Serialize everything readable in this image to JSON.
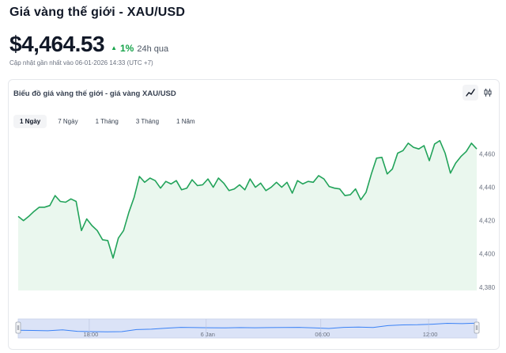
{
  "header": {
    "title": "Giá vàng thế giới - XAU/USD",
    "price": "$4,464.53",
    "change": "1%",
    "change_period": "24h qua",
    "updated": "Cập nhật gần nhất vào 06-01-2026 14:33 (UTC +7)"
  },
  "card": {
    "title": "Biểu đồ giá vàng thế giới - giá vàng XAU/USD",
    "modes": [
      {
        "icon": "line-chart-icon",
        "active": true
      },
      {
        "icon": "candlestick-icon",
        "active": false
      }
    ],
    "tabs": [
      {
        "label": "1 Ngày",
        "active": true
      },
      {
        "label": "7 Ngày",
        "active": false
      },
      {
        "label": "1 Tháng",
        "active": false
      },
      {
        "label": "3 Tháng",
        "active": false
      },
      {
        "label": "1 Năm",
        "active": false
      }
    ]
  },
  "colors": {
    "accent": "#16a34a",
    "line": "#22a35a",
    "area": "#eaf7ee",
    "navigator_fill": "#dbe3f7",
    "navigator_line": "#3b82f6"
  },
  "chart_data": {
    "type": "area",
    "y_ticks": [
      "4,460",
      "4,440",
      "4,420",
      "4,400",
      "4,380"
    ],
    "y_tick_values": [
      4460,
      4440,
      4420,
      4400,
      4380
    ],
    "ylim": [
      4378,
      4475
    ],
    "nav_x_labels": [
      "18:00",
      "6 Jan",
      "06:00",
      "12:00"
    ],
    "nav_x_positions": [
      0.155,
      0.41,
      0.66,
      0.895
    ],
    "values": [
      4422.5,
      4420.0,
      4422.5,
      4425.5,
      4428.0,
      4428.0,
      4429.0,
      4435.0,
      4431.5,
      4431.0,
      4433.0,
      4431.5,
      4414.0,
      4421.0,
      4417.0,
      4414.0,
      4408.5,
      4408.0,
      4397.5,
      4409.5,
      4414.0,
      4425.0,
      4434.0,
      4446.5,
      4443.0,
      4445.5,
      4444.0,
      4439.5,
      4443.5,
      4442.0,
      4444.0,
      4438.5,
      4439.5,
      4444.5,
      4441.0,
      4441.5,
      4445.0,
      4440.0,
      4445.5,
      4442.5,
      4438.0,
      4439.0,
      4441.5,
      4438.5,
      4445.0,
      4440.0,
      4442.5,
      4438.0,
      4440.0,
      4443.0,
      4440.0,
      4443.0,
      4436.5,
      4444.0,
      4442.0,
      4443.5,
      4443.0,
      4447.0,
      4445.0,
      4440.5,
      4439.5,
      4439.0,
      4435.0,
      4435.5,
      4439.0,
      4432.5,
      4437.0,
      4448.0,
      4457.5,
      4458.0,
      4448.0,
      4451.0,
      4460.5,
      4462.0,
      4466.5,
      4464.0,
      4463.0,
      4465.0,
      4456.0,
      4466.0,
      4468.0,
      4460.5,
      4448.5,
      4454.5,
      4458.5,
      4461.5,
      4466.5,
      4463.0
    ],
    "nav_values": [
      0.62,
      0.64,
      0.66,
      0.6,
      0.7,
      0.72,
      0.74,
      0.72,
      0.58,
      0.55,
      0.48,
      0.42,
      0.44,
      0.45,
      0.46,
      0.44,
      0.45,
      0.44,
      0.43,
      0.42,
      0.46,
      0.5,
      0.42,
      0.4,
      0.43,
      0.3,
      0.25,
      0.24,
      0.2,
      0.14,
      0.16,
      0.13
    ]
  }
}
